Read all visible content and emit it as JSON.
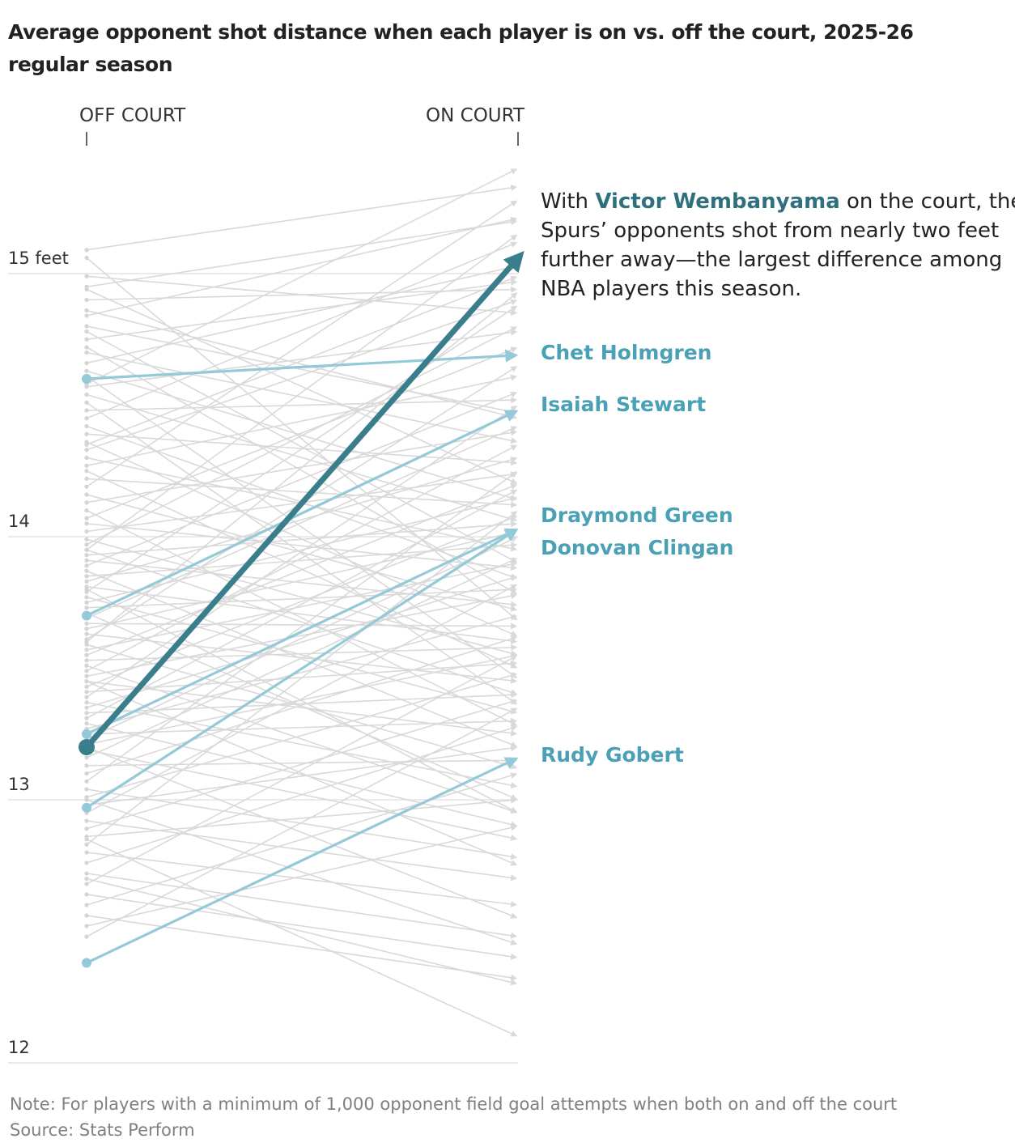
{
  "title": "Average opponent shot distance when each player is on vs. off the court, 2025-26 regular season",
  "footer": {
    "note": "Note: For players with a minimum of 1,000 opponent field goal attempts when both on and off the court",
    "source": "Source: Stats Perform"
  },
  "colors": {
    "background_lines": "#d9d9d9",
    "highlight": "#94c9d7",
    "highlight_label": "#4aa0b5",
    "focus": "#3a7d8c",
    "focus_label": "#2f6f7e"
  },
  "chart_data": {
    "type": "slope",
    "columns": [
      "OFF COURT",
      "ON COURT"
    ],
    "y_ticks": [
      {
        "value": 15,
        "label": "15 feet"
      },
      {
        "value": 14,
        "label": "14"
      },
      {
        "value": 13,
        "label": "13"
      },
      {
        "value": 12,
        "label": "12"
      }
    ],
    "ylim": [
      12,
      15.5
    ],
    "annotation": {
      "before": "With ",
      "name": "Victor Wembanyama",
      "lines": [
        " on the court, the",
        "Spurs’ opponents shot from nearly two feet",
        "further away—the largest difference among",
        "NBA players this season."
      ]
    },
    "focus_player": {
      "name": "Victor Wembanyama",
      "off": 13.2,
      "on": 15.08
    },
    "highlighted_players": [
      {
        "name": "Chet Holmgren",
        "off": 14.6,
        "on": 14.69,
        "label": "Chet Holmgren"
      },
      {
        "name": "Isaiah Stewart",
        "off": 13.7,
        "on": 14.48,
        "label": "Isaiah Stewart"
      },
      {
        "name": "Draymond Green",
        "off": 13.25,
        "on": 14.03,
        "label": "Draymond Green"
      },
      {
        "name": "Donovan Clingan",
        "off": 12.97,
        "on": 14.03,
        "label": "Donovan Clingan"
      },
      {
        "name": "Rudy Gobert",
        "off": 12.38,
        "on": 13.16,
        "label": "Rudy Gobert"
      }
    ],
    "other_players": [
      [
        15.09,
        15.33
      ],
      [
        15.06,
        13.68
      ],
      [
        14.99,
        14.85
      ],
      [
        14.94,
        14.2
      ],
      [
        14.9,
        14.94
      ],
      [
        14.86,
        14.45
      ],
      [
        14.84,
        15.21
      ],
      [
        14.8,
        14.47
      ],
      [
        14.78,
        13.9
      ],
      [
        14.75,
        14.97
      ],
      [
        14.72,
        13.78
      ],
      [
        14.7,
        14.36
      ],
      [
        14.66,
        15.03
      ],
      [
        14.63,
        14.14
      ],
      [
        14.61,
        13.46
      ],
      [
        14.57,
        14.78
      ],
      [
        14.54,
        14.06
      ],
      [
        14.51,
        13.36
      ],
      [
        14.48,
        14.52
      ],
      [
        14.45,
        15.12
      ],
      [
        14.42,
        13.84
      ],
      [
        14.39,
        14.28
      ],
      [
        14.36,
        13.62
      ],
      [
        14.33,
        14.9
      ],
      [
        14.3,
        13.95
      ],
      [
        14.27,
        14.61
      ],
      [
        14.25,
        13.5
      ],
      [
        14.22,
        14.12
      ],
      [
        14.19,
        15.28
      ],
      [
        14.16,
        13.72
      ],
      [
        14.13,
        14.4
      ],
      [
        14.1,
        13.28
      ],
      [
        14.07,
        14.72
      ],
      [
        14.05,
        13.88
      ],
      [
        14.02,
        14.24
      ],
      [
        13.99,
        13.55
      ],
      [
        13.97,
        14.8
      ],
      [
        13.95,
        13.4
      ],
      [
        13.93,
        14.05
      ],
      [
        13.91,
        13.74
      ],
      [
        13.89,
        14.55
      ],
      [
        13.87,
        13.2
      ],
      [
        13.85,
        13.97
      ],
      [
        13.83,
        14.3
      ],
      [
        13.81,
        13.6
      ],
      [
        13.79,
        14.88
      ],
      [
        13.77,
        13.33
      ],
      [
        13.75,
        14.15
      ],
      [
        13.73,
        13.8
      ],
      [
        13.71,
        13.0
      ],
      [
        13.69,
        14.42
      ],
      [
        13.67,
        13.66
      ],
      [
        13.65,
        14.02
      ],
      [
        13.63,
        13.45
      ],
      [
        13.61,
        14.65
      ],
      [
        13.59,
        13.12
      ],
      [
        13.57,
        13.9
      ],
      [
        13.55,
        14.2
      ],
      [
        13.53,
        13.58
      ],
      [
        13.51,
        12.95
      ],
      [
        13.49,
        14.35
      ],
      [
        13.47,
        13.78
      ],
      [
        13.45,
        13.25
      ],
      [
        13.43,
        14.08
      ],
      [
        13.41,
        13.52
      ],
      [
        13.39,
        14.5
      ],
      [
        13.37,
        13.05
      ],
      [
        13.35,
        13.85
      ],
      [
        13.33,
        13.4
      ],
      [
        13.31,
        14.18
      ],
      [
        13.29,
        12.9
      ],
      [
        13.27,
        13.7
      ],
      [
        13.25,
        13.3
      ],
      [
        13.23,
        14.0
      ],
      [
        13.21,
        13.55
      ],
      [
        13.19,
        12.85
      ],
      [
        13.16,
        13.92
      ],
      [
        13.13,
        13.15
      ],
      [
        13.1,
        13.62
      ],
      [
        13.07,
        14.25
      ],
      [
        13.04,
        12.78
      ],
      [
        13.01,
        13.48
      ],
      [
        12.98,
        13.2
      ],
      [
        12.95,
        13.82
      ],
      [
        12.92,
        12.7
      ],
      [
        12.89,
        13.38
      ],
      [
        12.86,
        13.0
      ],
      [
        12.83,
        14.1
      ],
      [
        12.8,
        12.6
      ],
      [
        12.76,
        13.28
      ],
      [
        12.72,
        12.48
      ],
      [
        12.68,
        13.55
      ],
      [
        12.64,
        12.4
      ],
      [
        12.6,
        13.1
      ],
      [
        12.56,
        12.32
      ],
      [
        12.52,
        12.9
      ],
      [
        12.48,
        13.35
      ],
      [
        14.95,
        15.2
      ],
      [
        14.58,
        15.4
      ],
      [
        13.95,
        15.15
      ],
      [
        14.35,
        14.99
      ],
      [
        13.6,
        14.93
      ],
      [
        13.2,
        12.55
      ],
      [
        13.0,
        12.45
      ],
      [
        12.7,
        12.3
      ],
      [
        12.85,
        12.1
      ],
      [
        13.45,
        12.75
      ],
      [
        13.8,
        12.95
      ]
    ]
  }
}
